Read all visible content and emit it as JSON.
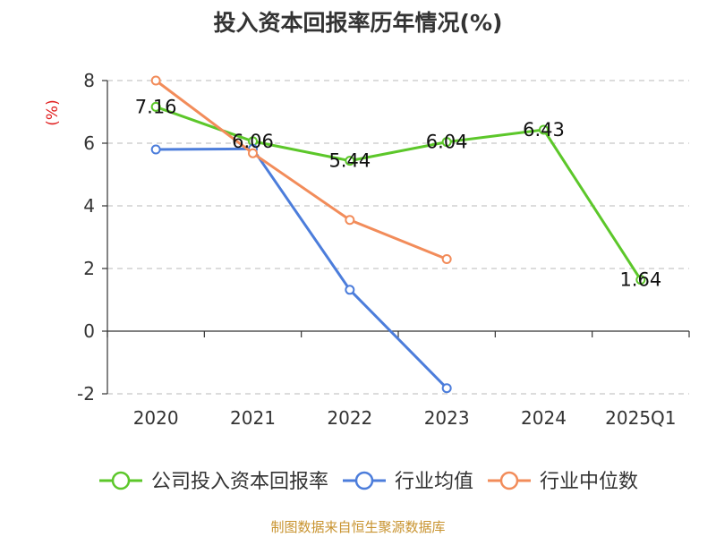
{
  "chart_data": {
    "type": "line",
    "title": "投入资本回报率历年情况(%)",
    "ylabel": "(%)",
    "xlabel": "",
    "categories": [
      "2020",
      "2021",
      "2022",
      "2023",
      "2024",
      "2025Q1"
    ],
    "ylim": [
      -2,
      8
    ],
    "yticks": [
      -2,
      0,
      2,
      4,
      6,
      8
    ],
    "grid": true,
    "legend_position": "bottom",
    "series": [
      {
        "name": "公司投入资本回报率",
        "color": "#5cc72a",
        "values": [
          7.16,
          6.06,
          5.44,
          6.04,
          6.43,
          1.64
        ],
        "labels": [
          "7.16",
          "6.06",
          "5.44",
          "6.04",
          "6.43",
          "1.64"
        ]
      },
      {
        "name": "行业均值",
        "color": "#4c7ddb",
        "values": [
          5.8,
          5.82,
          1.32,
          -1.82,
          null,
          null
        ]
      },
      {
        "name": "行业中位数",
        "color": "#f28c5a",
        "values": [
          8.0,
          5.68,
          3.55,
          2.3,
          null,
          null
        ]
      }
    ]
  },
  "source": "制图数据来自恒生聚源数据库"
}
